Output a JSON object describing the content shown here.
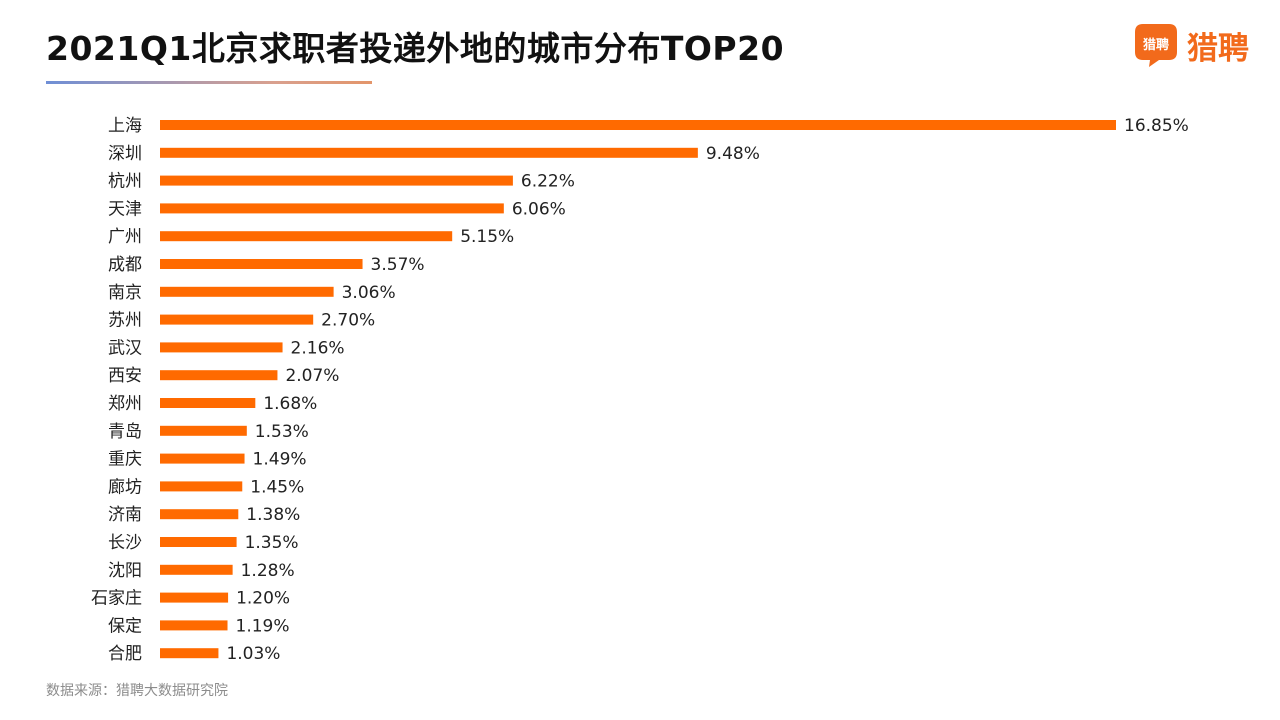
{
  "title": "2021Q1北京求职者投递外地的城市分布TOP20",
  "logo": {
    "icon_text": "猎聘",
    "word": "猎聘",
    "icon": "speech-bubble-logo-icon"
  },
  "source": "数据来源：猎聘大数据研究院",
  "colors": {
    "bar": "#ff6a00",
    "text": "#222222",
    "title_rule_start": "#6f8fd6",
    "title_rule_end": "#e3956a",
    "logo": "#f26a1b"
  },
  "chart_data": {
    "type": "bar",
    "orientation": "horizontal",
    "categories": [
      "上海",
      "深圳",
      "杭州",
      "天津",
      "广州",
      "成都",
      "南京",
      "苏州",
      "武汉",
      "西安",
      "郑州",
      "青岛",
      "重庆",
      "廊坊",
      "济南",
      "长沙",
      "沈阳",
      "石家庄",
      "保定",
      "合肥"
    ],
    "values": [
      16.85,
      9.48,
      6.22,
      6.06,
      5.15,
      3.57,
      3.06,
      2.7,
      2.16,
      2.07,
      1.68,
      1.53,
      1.49,
      1.45,
      1.38,
      1.35,
      1.28,
      1.2,
      1.19,
      1.03
    ],
    "value_labels": [
      "16.85%",
      "9.48%",
      "6.22%",
      "6.06%",
      "5.15%",
      "3.57%",
      "3.06%",
      "2.70%",
      "2.16%",
      "2.07%",
      "1.68%",
      "1.53%",
      "1.49%",
      "1.45%",
      "1.38%",
      "1.35%",
      "1.28%",
      "1.20%",
      "1.19%",
      "1.03%"
    ],
    "unit": "%",
    "xlim": [
      0,
      16.85
    ],
    "grid": false,
    "legend": "none"
  }
}
